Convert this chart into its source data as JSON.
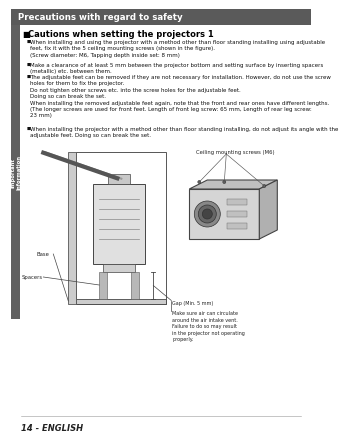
{
  "header_text": "Precautions with regard to safety",
  "header_bg": "#5a5a5a",
  "header_text_color": "#ffffff",
  "page_bg": "#ffffff",
  "sidebar_bg": "#606060",
  "sidebar_text": "Important\nInformation",
  "sidebar_text_color": "#ffffff",
  "section_title": "Cautions when setting the projectors 1",
  "bullet1": "When installing and using the projector with a method other than floor standing installing using adjustable feet, fix it with the 5 ceiling mounting screws (shown in the figure). (Screw diameter: M6, Tapping depth inside set: 8 mm)",
  "bullet2": "Make a clearance of at least 5 mm between the projector bottom and setting surface by inserting spacers (metallic) etc. between them.",
  "bullet3": "The adjustable feet can be removed if they are not necessary for installation. However, do not use the screw holes for them to fix the projector. Do not tighten other screws etc. into the screw holes for the adjustable feet. Doing so can break the set. When installing the removed adjustable feet again, note that the front and rear ones have different lengths. (The longer screws are used for front feet. Length of front leg screw: 65 mm, Length of rear leg screw: 23 mm)",
  "bullet4": "When installing the projector with a method other than floor standing installing, do not adjust its angle with the adjustable feet. Doing so can break the set.",
  "label_base": "Base",
  "label_spacers": "Spacers",
  "label_gap": "Gap (Min. 5 mm)",
  "label_air": "Make sure air can circulate\naround the air intake vent.\nFailure to do so may result\nin the projector not operating\nproperly.",
  "label_ceiling": "Ceiling mounting screws (M6)",
  "footer_text": "14 - ENGLISH"
}
